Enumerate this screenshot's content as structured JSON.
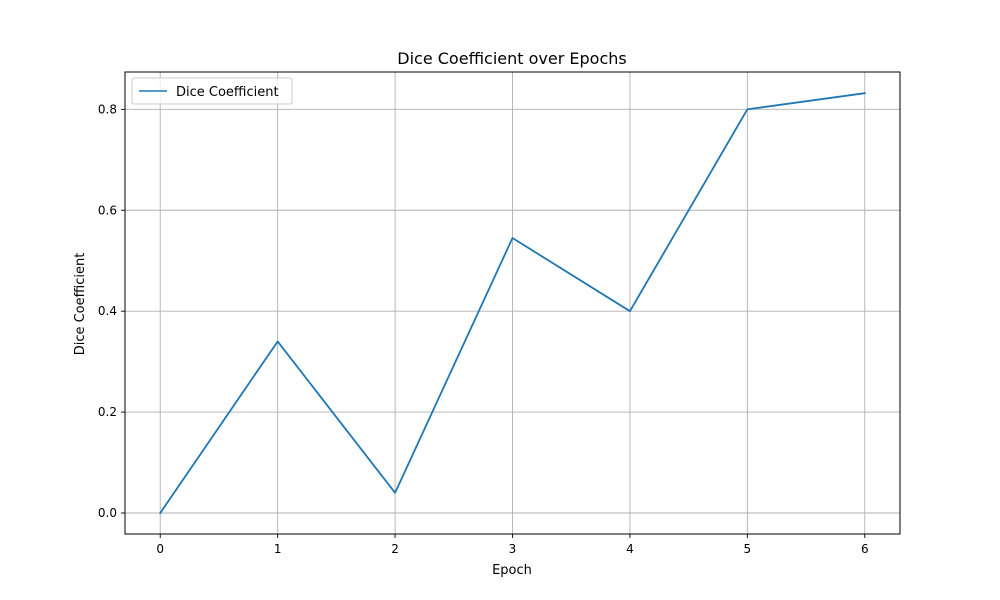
{
  "chart_data": {
    "type": "line",
    "title": "Dice Coefficient over Epochs",
    "xlabel": "Epoch",
    "ylabel": "Dice Coefficient",
    "x": [
      0,
      1,
      2,
      3,
      4,
      5,
      6
    ],
    "series": [
      {
        "name": "Dice Coefficient",
        "values": [
          0.0,
          0.34,
          0.04,
          0.545,
          0.4,
          0.8,
          0.832
        ],
        "color": "#1f77b4"
      }
    ],
    "xticks": [
      "0",
      "1",
      "2",
      "3",
      "4",
      "5",
      "6"
    ],
    "yticks": [
      "0.0",
      "0.2",
      "0.4",
      "0.6",
      "0.8"
    ],
    "xlim": [
      -0.3,
      6.3
    ],
    "ylim": [
      -0.0416,
      0.874
    ],
    "grid": true,
    "legend_position": "upper-left"
  }
}
